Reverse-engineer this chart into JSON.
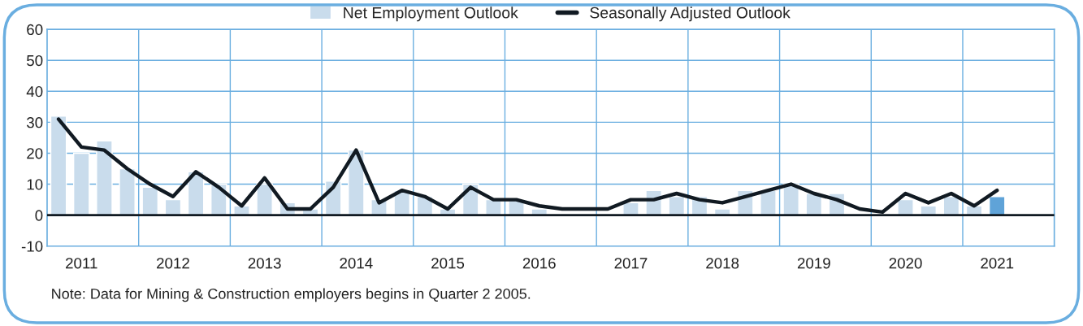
{
  "chart_data": {
    "type": "bar",
    "categories": [
      null,
      "2011",
      null,
      null,
      null,
      "2012",
      null,
      null,
      null,
      "2013",
      null,
      null,
      null,
      "2014",
      null,
      null,
      null,
      "2015",
      null,
      null,
      null,
      "2016",
      null,
      null,
      null,
      "2017",
      null,
      null,
      null,
      "2018",
      null,
      null,
      null,
      "2019",
      null,
      null,
      null,
      "2020",
      null,
      null,
      null,
      "2021",
      null,
      null
    ],
    "series": [
      {
        "name": "Net Employment Outlook",
        "color": "#c9dcec",
        "colors": [
          "#c9dcec",
          "#c9dcec",
          "#c9dcec",
          "#c9dcec",
          "#c9dcec",
          "#c9dcec",
          "#c9dcec",
          "#c9dcec",
          "#c9dcec",
          "#c9dcec",
          "#c9dcec",
          "#c9dcec",
          "#c9dcec",
          "#c9dcec",
          "#c9dcec",
          "#c9dcec",
          "#c9dcec",
          "#c9dcec",
          "#c9dcec",
          "#c9dcec",
          "#c9dcec",
          "#c9dcec",
          "#c9dcec",
          "#c9dcec",
          "#c9dcec",
          "#c9dcec",
          "#c9dcec",
          "#c9dcec",
          "#c9dcec",
          "#c9dcec",
          "#c9dcec",
          "#c9dcec",
          "#c9dcec",
          "#c9dcec",
          "#c9dcec",
          "#c9dcec",
          null,
          "#c9dcec",
          "#c9dcec",
          "#c9dcec",
          "#c9dcec",
          "#5fa3d8",
          null,
          null
        ],
        "values": [
          32,
          20,
          24,
          15,
          9,
          5,
          14,
          10,
          3,
          10,
          4,
          2,
          11,
          21,
          5,
          8,
          6,
          2,
          10,
          5,
          5,
          2,
          null,
          null,
          null,
          4,
          8,
          6,
          6,
          2,
          8,
          8,
          10,
          7,
          7,
          null,
          null,
          5,
          3,
          6,
          3,
          6,
          null,
          null
        ]
      },
      {
        "name": "Seasonally Adjusted Outlook",
        "type": "line",
        "color": "#111a22",
        "values": [
          31,
          22,
          21,
          15,
          10,
          6,
          14,
          9,
          3,
          12,
          2,
          2,
          9,
          21,
          4,
          8,
          6,
          2,
          9,
          5,
          5,
          3,
          2,
          2,
          2,
          5,
          5,
          7,
          5,
          4,
          6,
          8,
          10,
          7,
          5,
          2,
          1,
          7,
          4,
          7,
          3,
          8,
          null,
          null
        ]
      }
    ],
    "ylim": [
      -10,
      60
    ],
    "yticks": [
      -10,
      0,
      10,
      20,
      30,
      40,
      50,
      60
    ],
    "grid": true,
    "legend": "top",
    "ref_lines": [
      {
        "axis": "y",
        "value": 0,
        "color": "#111a22"
      }
    ],
    "annotations": [
      "Note: Data for Mining & Construction employers begins in Quarter 2 2005."
    ]
  }
}
